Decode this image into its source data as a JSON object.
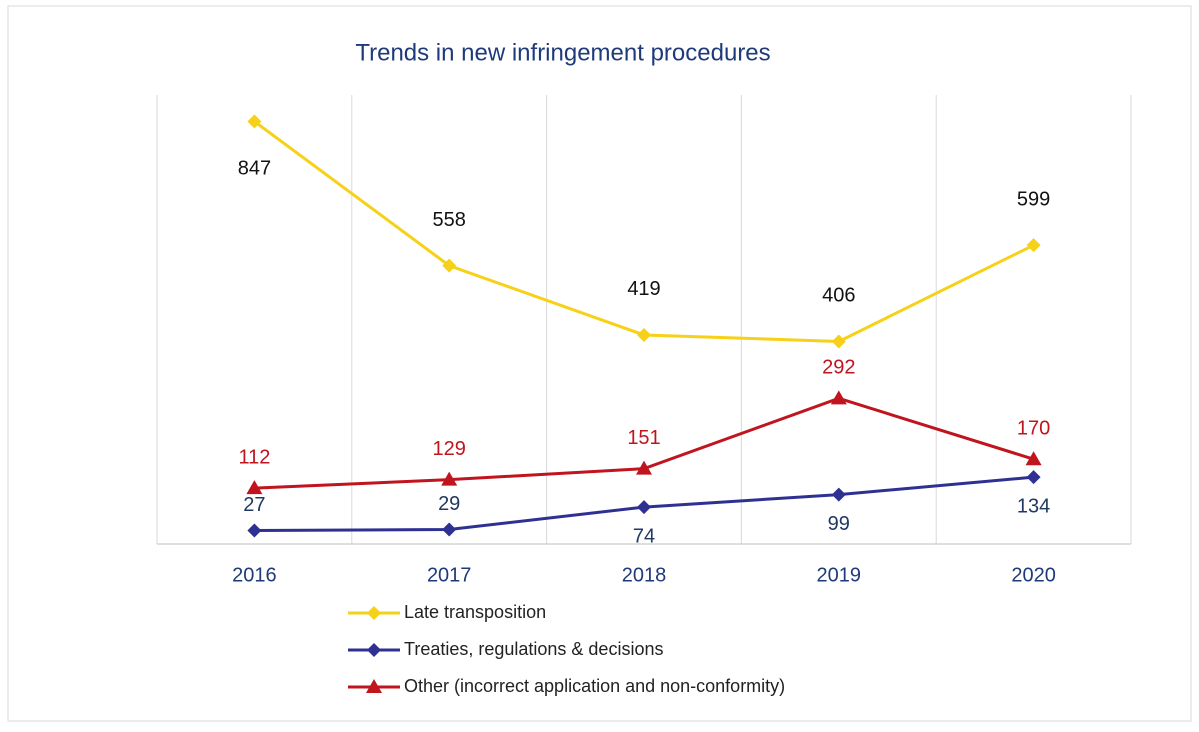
{
  "chart_data": {
    "type": "line",
    "title": "Trends in new infringement procedures",
    "categories": [
      "2016",
      "2017",
      "2018",
      "2019",
      "2020"
    ],
    "series": [
      {
        "name": "Late transposition",
        "color": "#f7d117",
        "marker": "diamond",
        "values": [
          847,
          558,
          419,
          406,
          599
        ]
      },
      {
        "name": "Treaties, regulations & decisions",
        "color": "#2e3192",
        "marker": "diamond",
        "values": [
          27,
          29,
          74,
          99,
          134
        ]
      },
      {
        "name": "Other (incorrect application and non-conformity)",
        "color": "#c0141e",
        "marker": "triangle",
        "values": [
          112,
          129,
          151,
          292,
          170
        ]
      }
    ],
    "ylim": [
      0,
      900
    ],
    "grid": true
  }
}
